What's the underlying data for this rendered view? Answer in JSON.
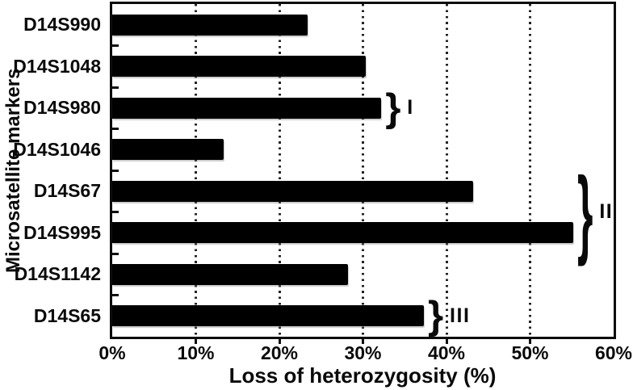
{
  "figure": {
    "background": "#ffffff",
    "ink_color": "#0a0a0a",
    "gridline_color": "#232323"
  },
  "chart_data": {
    "type": "bar",
    "orientation": "horizontal",
    "title": "",
    "xlabel": "Loss of heterozygosity (%)",
    "ylabel": "Microsatellite markers",
    "categories": [
      "D14S990",
      "D14S1048",
      "D14S980",
      "D14S1046",
      "D14S67",
      "D14S995",
      "D14S1142",
      "D14S65"
    ],
    "values": [
      23.4,
      30.3,
      32.2,
      13.3,
      43.2,
      55.2,
      28.2,
      37.3
    ],
    "unit": "%",
    "xlim": [
      0,
      60
    ],
    "x_tick_labels": [
      "0%",
      "10%",
      "20%",
      "30%",
      "40%",
      "50%",
      "60%"
    ],
    "grid": "vertical-dotted",
    "legend": "none",
    "bar_color": "#000000",
    "annotations": [
      {
        "label": "I",
        "rows": [
          2
        ],
        "symbol": "}"
      },
      {
        "label": "II",
        "rows": [
          4,
          5
        ],
        "symbol": "}"
      },
      {
        "label": "III",
        "rows": [
          7
        ],
        "symbol": "}"
      }
    ]
  }
}
